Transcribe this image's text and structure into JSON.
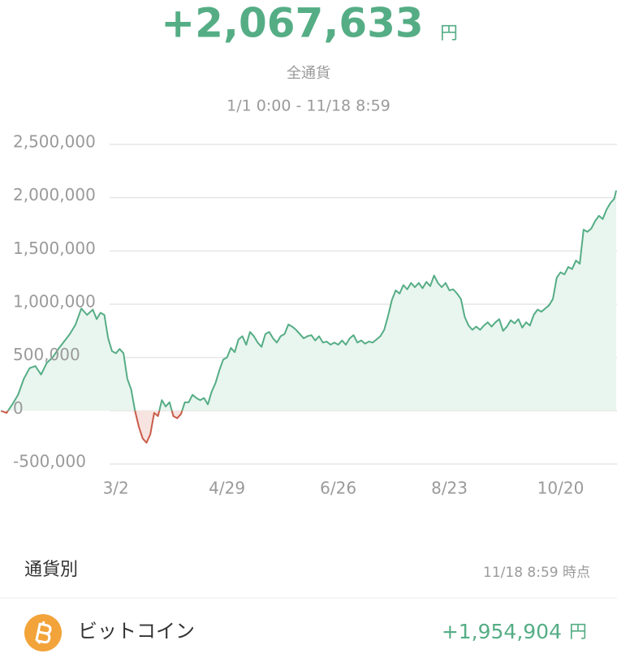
{
  "header": {
    "total": "+2,067,633",
    "unit": "円",
    "scope": "全通貨",
    "period": "1/1 0:00 - 11/18 8:59"
  },
  "chart_data": {
    "type": "line",
    "color": "#55ad85",
    "negative_color": "#c95b48",
    "fill": "#e9f5ef",
    "negative_fill": "#f7e4e0",
    "grid": true,
    "xlim": [
      0,
      321
    ],
    "ylim": [
      -500000,
      2500000
    ],
    "xticks": [
      {
        "value": 60,
        "label": "3/2"
      },
      {
        "value": 118,
        "label": "4/29"
      },
      {
        "value": 176,
        "label": "6/26"
      },
      {
        "value": 234,
        "label": "8/23"
      },
      {
        "value": 292,
        "label": "10/20"
      }
    ],
    "yticks": [
      {
        "value": -500000,
        "label": "-500,000"
      },
      0,
      {
        "value": 500000,
        "label": "500,000"
      },
      {
        "value": 1000000,
        "label": "1,000,000"
      },
      {
        "value": 1500000,
        "label": "1,500,000"
      },
      {
        "value": 2000000,
        "label": "2,000,000"
      },
      {
        "value": 2500000,
        "label": "2,500,000"
      }
    ],
    "x": [
      0,
      3,
      6,
      9,
      12,
      15,
      18,
      21,
      24,
      27,
      30,
      33,
      36,
      39,
      42,
      45,
      48,
      50,
      52,
      54,
      56,
      58,
      60,
      62,
      64,
      66,
      68,
      70,
      72,
      74,
      76,
      78,
      80,
      82,
      84,
      86,
      88,
      90,
      92,
      94,
      96,
      98,
      100,
      102,
      104,
      106,
      108,
      110,
      112,
      114,
      116,
      118,
      120,
      122,
      124,
      126,
      128,
      130,
      132,
      134,
      136,
      138,
      140,
      142,
      144,
      146,
      148,
      150,
      152,
      154,
      156,
      158,
      160,
      162,
      164,
      166,
      168,
      170,
      172,
      174,
      176,
      178,
      180,
      182,
      184,
      186,
      188,
      190,
      192,
      194,
      196,
      198,
      200,
      202,
      204,
      206,
      208,
      210,
      212,
      214,
      216,
      218,
      220,
      222,
      224,
      226,
      228,
      230,
      232,
      234,
      236,
      238,
      240,
      242,
      244,
      246,
      248,
      250,
      252,
      254,
      256,
      258,
      260,
      262,
      264,
      266,
      268,
      270,
      272,
      274,
      276,
      278,
      280,
      282,
      284,
      286,
      288,
      290,
      292,
      294,
      296,
      298,
      300,
      302,
      304,
      306,
      308,
      310,
      312,
      314,
      316,
      318,
      320,
      321
    ],
    "values": [
      0,
      -20000,
      60000,
      150000,
      300000,
      400000,
      420000,
      340000,
      450000,
      500000,
      580000,
      650000,
      720000,
      810000,
      960000,
      900000,
      950000,
      860000,
      920000,
      900000,
      680000,
      560000,
      540000,
      580000,
      540000,
      300000,
      200000,
      0,
      -150000,
      -260000,
      -300000,
      -220000,
      -20000,
      -50000,
      100000,
      40000,
      80000,
      -50000,
      -70000,
      -30000,
      80000,
      80000,
      150000,
      120000,
      100000,
      120000,
      60000,
      180000,
      260000,
      380000,
      480000,
      500000,
      590000,
      550000,
      670000,
      700000,
      620000,
      740000,
      700000,
      640000,
      600000,
      720000,
      740000,
      680000,
      640000,
      700000,
      720000,
      810000,
      790000,
      760000,
      720000,
      680000,
      700000,
      710000,
      660000,
      700000,
      640000,
      650000,
      620000,
      640000,
      620000,
      660000,
      620000,
      680000,
      710000,
      640000,
      660000,
      630000,
      650000,
      640000,
      670000,
      700000,
      760000,
      890000,
      1040000,
      1130000,
      1100000,
      1180000,
      1140000,
      1200000,
      1160000,
      1200000,
      1150000,
      1210000,
      1170000,
      1270000,
      1200000,
      1160000,
      1200000,
      1130000,
      1140000,
      1100000,
      1050000,
      880000,
      800000,
      760000,
      790000,
      760000,
      800000,
      830000,
      790000,
      830000,
      860000,
      750000,
      790000,
      850000,
      820000,
      860000,
      780000,
      830000,
      800000,
      900000,
      950000,
      930000,
      960000,
      990000,
      1050000,
      1250000,
      1300000,
      1280000,
      1350000,
      1330000,
      1410000,
      1380000,
      1700000,
      1680000,
      1710000,
      1780000,
      1830000,
      1800000,
      1890000,
      1950000,
      1990000,
      2067633
    ]
  },
  "section": {
    "title": "通貨別",
    "timestamp": "11/18 8:59 時点"
  },
  "currencies": [
    {
      "name": "ビットコイン",
      "value": "+1,954,904",
      "unit": "円"
    }
  ]
}
